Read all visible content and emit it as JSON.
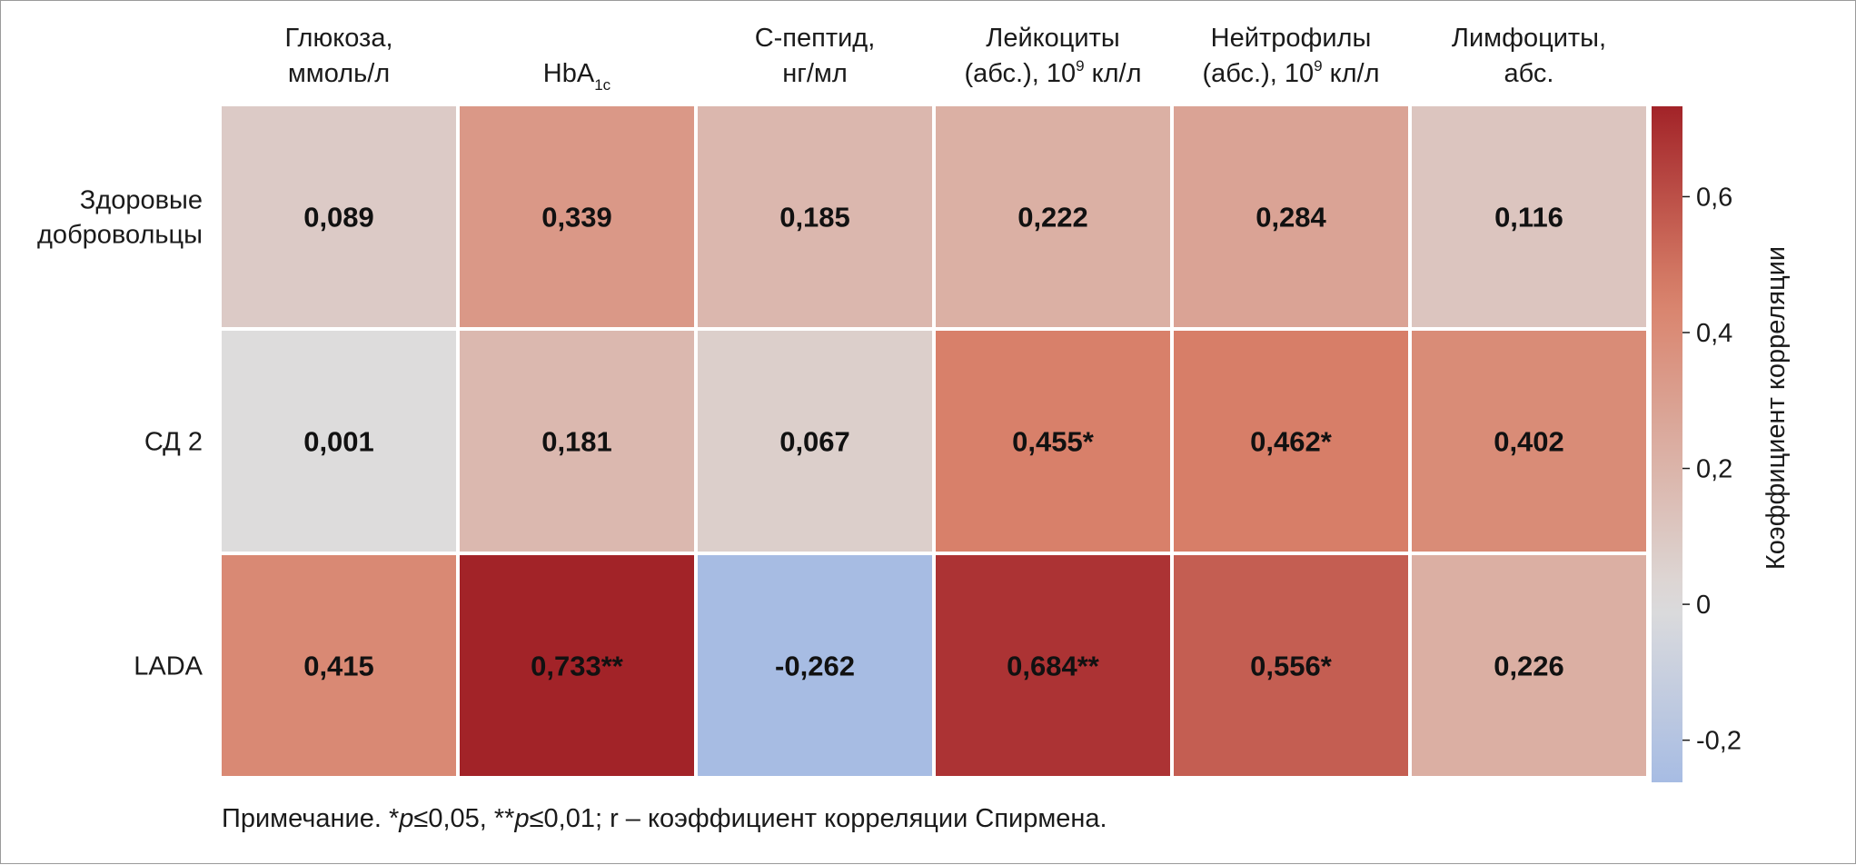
{
  "chart_data": {
    "type": "heatmap",
    "columns": [
      {
        "lines": [
          "Глюкоза,",
          "ммоль/л"
        ]
      },
      {
        "lines": [
          "",
          "HbA"
        ],
        "subscript": "1c"
      },
      {
        "lines": [
          "С-пептид,",
          "нг/мл"
        ]
      },
      {
        "lines": [
          "Лейкоциты",
          "(абс.), 10"
        ],
        "superscript": "9",
        "suffix": " кл/л"
      },
      {
        "lines": [
          "Нейтрофилы",
          "(абс.), 10"
        ],
        "superscript": "9",
        "suffix": " кл/л"
      },
      {
        "lines": [
          "Лимфоциты,",
          "абс."
        ]
      }
    ],
    "rows": [
      {
        "lines": [
          "Здоровые",
          "добровольцы"
        ]
      },
      {
        "lines": [
          "СД 2"
        ]
      },
      {
        "lines": [
          "LADA"
        ]
      }
    ],
    "values": [
      [
        0.089,
        0.339,
        0.185,
        0.222,
        0.284,
        0.116
      ],
      [
        0.001,
        0.181,
        0.067,
        0.455,
        0.462,
        0.402
      ],
      [
        0.415,
        0.733,
        -0.262,
        0.684,
        0.556,
        0.226
      ]
    ],
    "labels": [
      [
        "0,089",
        "0,339",
        "0,185",
        "0,222",
        "0,284",
        "0,116"
      ],
      [
        "0,001",
        "0,181",
        "0,067",
        "0,455*",
        "0,462*",
        "0,402"
      ],
      [
        "0,415",
        "0,733**",
        "-0,262",
        "0,684**",
        "0,556*",
        "0,226"
      ]
    ],
    "colorbar": {
      "title": "Коэффициент корреляции",
      "vmin": -0.262,
      "vmax": 0.733,
      "ticks": [
        -0.2,
        0,
        0.2,
        0.4,
        0.6
      ],
      "tick_labels": [
        "-0,2",
        "0",
        "0,2",
        "0,4",
        "0,6"
      ],
      "colormap": "coolwarm",
      "colors": {
        "low": "#a7bce3",
        "center": "#dddcdc",
        "mid_high": "#d9826b",
        "high": "#a22328"
      }
    }
  },
  "note": {
    "prefix": "Примечание. *",
    "p1": "p",
    "t1": "≤0,05, **",
    "p2": "p",
    "t2": "≤0,01; r – коэффициент корреляции Спирмена."
  }
}
